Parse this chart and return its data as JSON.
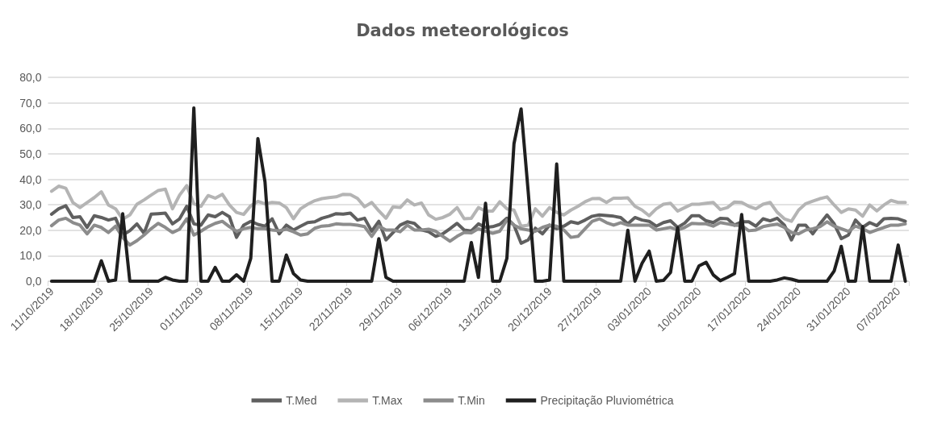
{
  "chart_data": {
    "type": "line",
    "title": "Dados meteorológicos",
    "categories": [
      "11/10/2019",
      null,
      null,
      null,
      null,
      null,
      null,
      "18/10/2019",
      null,
      null,
      null,
      null,
      null,
      null,
      "25/10/2019",
      null,
      null,
      null,
      null,
      null,
      null,
      "01/11/2019",
      null,
      null,
      null,
      null,
      null,
      null,
      "08/11/2019",
      null,
      null,
      null,
      null,
      null,
      null,
      "15/11/2019",
      null,
      null,
      null,
      null,
      null,
      null,
      "22/11/2019",
      null,
      null,
      null,
      null,
      null,
      null,
      "29/11/2019",
      null,
      null,
      null,
      null,
      null,
      null,
      "06/12/2019",
      null,
      null,
      null,
      null,
      null,
      null,
      "13/12/2019",
      null,
      null,
      null,
      null,
      null,
      null,
      "20/12/2019",
      null,
      null,
      null,
      null,
      null,
      null,
      "27/12/2019",
      null,
      null,
      null,
      null,
      null,
      null,
      "03/01/2020",
      null,
      null,
      null,
      null,
      null,
      null,
      "10/01/2020",
      null,
      null,
      null,
      null,
      null,
      null,
      "17/01/2020",
      null,
      null,
      null,
      null,
      null,
      null,
      "24/01/2020",
      null,
      null,
      null,
      null,
      null,
      null,
      "31/01/2020",
      null,
      null,
      null,
      null,
      null,
      null,
      "07/02/2020",
      null
    ],
    "series": [
      {
        "name": "T.Med",
        "color": "#5f5f5f",
        "values": [
          26.3,
          28.4,
          29.6,
          25,
          25.3,
          21.1,
          25.7,
          25,
          24,
          24.7,
          18.1,
          19.8,
          22.5,
          18.8,
          26.3,
          26.5,
          26.7,
          22.5,
          24.5,
          29.4,
          22.5,
          22,
          26,
          25.3,
          27,
          25.3,
          17.2,
          22,
          23.5,
          22.3,
          21.6,
          24.5,
          18.6,
          22,
          20.1,
          21.6,
          23,
          23.3,
          24.7,
          25.5,
          26.5,
          26.3,
          26.7,
          24,
          24.7,
          19.6,
          23.5,
          16.2,
          19.1,
          22,
          23.3,
          22.7,
          20.1,
          19.4,
          17.6,
          18.6,
          20.6,
          22.7,
          20.1,
          19.7,
          22.5,
          21.1,
          21.4,
          22.3,
          24.7,
          22,
          14.9,
          16.2,
          20.8,
          18.6,
          22,
          20.6,
          21.6,
          23.3,
          22.7,
          24,
          25.5,
          26,
          25.8,
          25.5,
          25,
          22.5,
          25,
          24,
          23.5,
          21.6,
          23,
          23.7,
          21.1,
          22.8,
          25.7,
          25.7,
          23.7,
          23,
          24.7,
          24.5,
          22,
          23.3,
          23.3,
          21.6,
          24.5,
          23.7,
          24.7,
          22,
          16.2,
          22,
          22,
          18.6,
          22.5,
          26,
          22.5,
          16.7,
          18.1,
          24,
          21.1,
          23,
          21.8,
          24.5,
          24.7,
          24.5,
          23.5
        ]
      },
      {
        "name": "T.Max",
        "color": "#b4b4b4",
        "values": [
          35.3,
          37.3,
          36.5,
          30.9,
          28.9,
          30.9,
          32.8,
          35.1,
          29.9,
          28.4,
          24.3,
          26,
          30.2,
          31.9,
          33.8,
          35.6,
          36.1,
          28.4,
          33.8,
          37.5,
          30.4,
          29.4,
          33.6,
          32.6,
          34.1,
          29.9,
          27,
          26.2,
          29.6,
          31.3,
          30.4,
          30.9,
          30.7,
          28.9,
          24.5,
          28.4,
          30.2,
          31.6,
          32.4,
          32.8,
          33.1,
          34.1,
          34,
          32.5,
          29.2,
          30.9,
          27.6,
          24.7,
          29.2,
          28.9,
          31.9,
          29.9,
          30.7,
          26,
          24.3,
          25,
          26.3,
          28.9,
          24.5,
          24.7,
          28.9,
          27.5,
          27.5,
          31.2,
          28.4,
          27.9,
          21.6,
          22,
          28.4,
          25.5,
          28.9,
          27,
          26,
          27.9,
          29.4,
          31.2,
          32.4,
          32.5,
          30.9,
          32.6,
          32.6,
          32.7,
          29.4,
          27.9,
          25.7,
          28.4,
          30.2,
          30.6,
          27.5,
          28.9,
          30.2,
          30.2,
          30.6,
          30.9,
          28.1,
          28.9,
          31.1,
          30.9,
          29.4,
          28.4,
          30.2,
          30.9,
          27,
          24.5,
          23.5,
          27.9,
          30.4,
          31.4,
          32.4,
          33.1,
          29.9,
          27,
          28.4,
          27.9,
          25.5,
          29.9,
          27.6,
          29.9,
          31.7,
          30.9,
          30.9
        ]
      },
      {
        "name": "T.Min",
        "color": "#8c8c8c",
        "values": [
          21.8,
          24,
          24.7,
          23,
          22,
          18.6,
          22,
          21.1,
          19.1,
          21.6,
          17.2,
          14.2,
          15.9,
          18.1,
          20.6,
          22.7,
          21.1,
          19.1,
          20.4,
          24.5,
          18.1,
          19.6,
          21.4,
          22.7,
          23.5,
          21.4,
          19.6,
          20.6,
          21.1,
          20.6,
          20.6,
          20.1,
          19.8,
          20.4,
          19.4,
          18.1,
          18.6,
          20.8,
          21.6,
          21.8,
          22.5,
          22.3,
          22.3,
          22,
          21.4,
          17.6,
          21.6,
          20.1,
          20.1,
          19.4,
          22,
          20.1,
          20.1,
          20.4,
          19.6,
          17.6,
          15.7,
          17.6,
          19.1,
          19,
          20.6,
          19.6,
          18.8,
          19.6,
          24,
          22,
          20.6,
          20.1,
          19.6,
          21.1,
          22,
          21.6,
          20.1,
          17.2,
          17.6,
          20.6,
          23.5,
          24.5,
          23,
          22,
          23,
          22,
          22,
          22,
          22,
          20.1,
          20.6,
          21.1,
          20.1,
          21.1,
          22.7,
          22.5,
          22.5,
          21.6,
          23,
          22.5,
          22,
          21.8,
          19.8,
          20.1,
          21.4,
          22,
          22.4,
          21.1,
          19.1,
          18.6,
          20.1,
          20.6,
          21.4,
          23.3,
          21.6,
          20.6,
          19.6,
          21.6,
          20.6,
          19.1,
          20.1,
          21.1,
          22,
          22,
          22.5
        ]
      },
      {
        "name": "Precipitação Pluviométrica",
        "color": "#1f1f1f",
        "values": [
          0,
          0,
          0,
          0,
          0,
          0,
          0,
          8,
          0,
          0.5,
          26.5,
          0,
          0,
          0,
          0,
          0,
          1.5,
          0.5,
          0,
          0,
          68,
          0,
          0,
          5.4,
          0,
          0,
          2.5,
          0,
          9,
          56,
          39,
          0,
          0,
          10.3,
          3,
          0.5,
          0,
          0,
          0,
          0,
          0,
          0,
          0,
          0,
          0,
          0,
          16.7,
          1.5,
          0,
          0,
          0,
          0,
          0,
          0,
          0,
          0,
          0,
          0,
          0,
          15.2,
          1.5,
          30.6,
          0,
          0,
          9,
          54,
          67.6,
          35,
          0,
          0,
          0.5,
          46,
          0,
          0,
          0,
          0,
          0,
          0,
          0,
          0,
          0,
          20,
          0,
          7,
          11.8,
          0,
          0.3,
          3.4,
          21,
          0,
          0,
          6,
          7.4,
          2.5,
          0.2,
          1.5,
          3,
          26.2,
          0,
          0,
          0,
          0,
          0.5,
          1.3,
          0.8,
          0,
          0,
          0,
          0,
          0,
          4,
          13.7,
          0,
          0,
          21.4,
          0,
          0,
          0,
          0,
          14.2,
          0
        ]
      }
    ],
    "ylim": [
      0,
      80
    ],
    "yticks": [
      {
        "value": 0,
        "label": "0,0"
      },
      {
        "value": 10,
        "label": "10,0"
      },
      {
        "value": 20,
        "label": "20,0"
      },
      {
        "value": 30,
        "label": "30,0"
      },
      {
        "value": 40,
        "label": "40,0"
      },
      {
        "value": 50,
        "label": "50,0"
      },
      {
        "value": 60,
        "label": "60,0"
      },
      {
        "value": 70,
        "label": "70,0"
      },
      {
        "value": 80,
        "label": "80,0"
      }
    ],
    "grid": "y",
    "legend": "bottom",
    "marker": "none",
    "line_style": "solid"
  }
}
